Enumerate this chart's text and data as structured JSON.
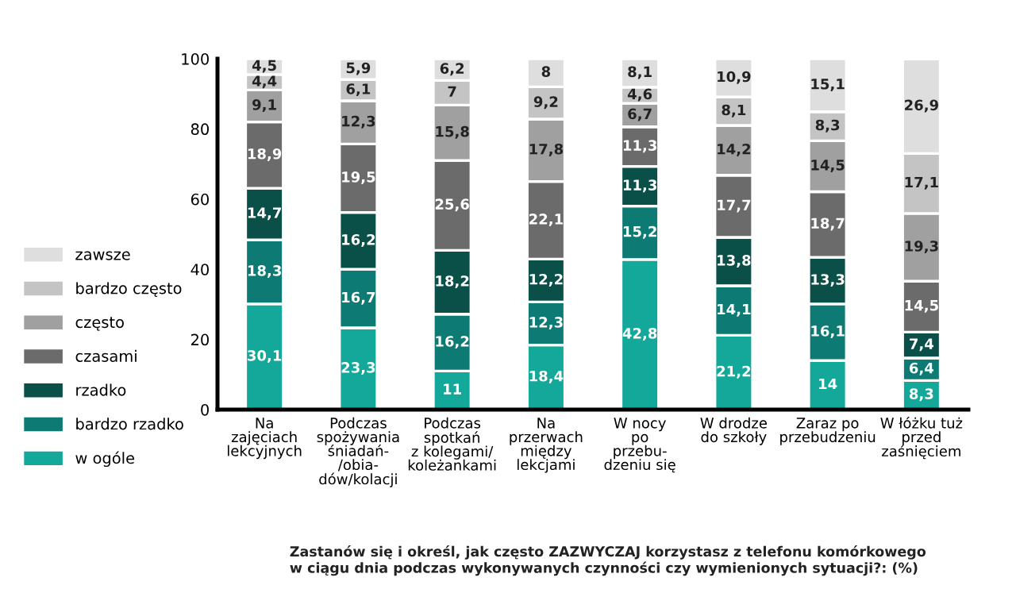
{
  "chart_data": {
    "type": "bar",
    "stacked": true,
    "legend": "left",
    "grid": false,
    "categories": [
      "Na\nzajęciach\nlekcyjnych",
      "Podczas\nspożywania\nśniadań-\n/obia-\ndów/kolacji",
      "Podczas\nspotkań\nz kolegami/\nkoleżankami",
      "Na\nprzerwach\nmiędzy\nlekcjami",
      "W nocy\npo\nprzebu-\ndzeniu się",
      "W drodze\ndo szkoły",
      "Zaraz po\nprzebudzeniu",
      "W łóżku tuż\nprzed\nzaśnięciem"
    ],
    "ylim": [
      0,
      100
    ],
    "yticks": [
      0,
      20,
      40,
      60,
      80,
      100
    ],
    "series": [
      {
        "name": "w ogóle",
        "color": "#14a89a",
        "values": [
          30.1,
          23.3,
          11,
          18.4,
          42.8,
          21.2,
          14,
          8.3
        ],
        "value_labels": [
          "30,1",
          "23,3",
          "11",
          "18,4",
          "42,8",
          "21,2",
          "14",
          "8,3"
        ]
      },
      {
        "name": "bardzo rzadko",
        "color": "#0d7a73",
        "values": [
          18.3,
          16.7,
          16.2,
          12.3,
          15.2,
          14.1,
          16.1,
          6.4
        ],
        "value_labels": [
          "18,3",
          "16,7",
          "16,2",
          "12,3",
          "15,2",
          "14,1",
          "16,1",
          "6,4"
        ]
      },
      {
        "name": "rzadko",
        "color": "#0b4f49",
        "values": [
          14.7,
          16.2,
          18.2,
          12.2,
          11.3,
          13.8,
          13.3,
          7.4
        ],
        "value_labels": [
          "14,7",
          "16,2",
          "18,2",
          "12,2",
          "11,3",
          "13,8",
          "13,3",
          "7,4"
        ]
      },
      {
        "name": "czasami",
        "color": "#6b6b6b",
        "values": [
          18.9,
          19.5,
          25.6,
          22.1,
          11.3,
          17.7,
          18.7,
          14.5
        ],
        "value_labels": [
          "18,9",
          "19,5",
          "25,6",
          "22,1",
          "11,3",
          "17,7",
          "18,7",
          "14,5"
        ]
      },
      {
        "name": "często",
        "color": "#a0a0a0",
        "values": [
          9.1,
          12.3,
          15.8,
          17.8,
          6.7,
          14.2,
          14.5,
          19.3
        ],
        "value_labels": [
          "9,1",
          "12,3",
          "15,8",
          "17,8",
          "6,7",
          "14,2",
          "14,5",
          "19,3"
        ]
      },
      {
        "name": "bardzo często",
        "color": "#c4c4c4",
        "values": [
          4.4,
          6.1,
          7,
          9.2,
          4.6,
          8.1,
          8.3,
          17.1
        ],
        "value_labels": [
          "4,4",
          "6,1",
          "7",
          "9,2",
          "4,6",
          "8,1",
          "8,3",
          "17,1"
        ]
      },
      {
        "name": "zawsze",
        "color": "#dedede",
        "values": [
          4.5,
          5.9,
          6.2,
          8,
          8.1,
          10.9,
          15.1,
          26.9
        ],
        "value_labels": [
          "4,5",
          "5,9",
          "6,2",
          "8",
          "8,1",
          "10,9",
          "15,1",
          "26,9"
        ]
      }
    ],
    "annotations": [
      "Zastanów się i określ, jak często ZAZWYCZAJ korzystasz z telefonu komórkowego\nw ciągu dnia podczas wykonywanych czynności czy wymienionych sytuacji?: (%)"
    ]
  }
}
